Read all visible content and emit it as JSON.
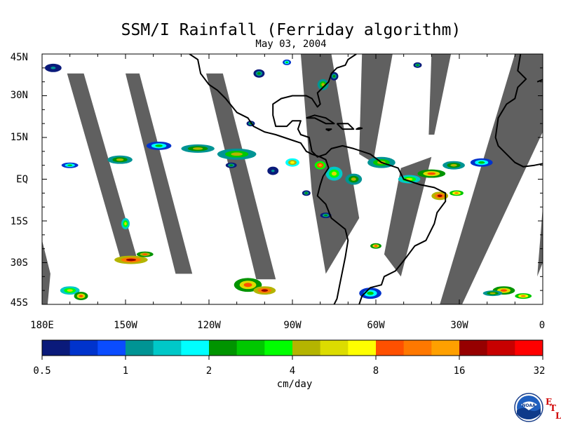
{
  "title": "SSM/I Rainfall (Ferriday algorithm)",
  "date": "May 03, 2004",
  "lat_labels": [
    "45N",
    "30N",
    "15N",
    "EQ",
    "15S",
    "30S",
    "45S"
  ],
  "lon_labels": [
    "180E",
    "150W",
    "120W",
    "90W",
    "60W",
    "30W",
    "0"
  ],
  "colorbar": {
    "tick_labels": [
      "0.5",
      "1",
      "2",
      "4",
      "8",
      "16",
      "32"
    ],
    "units": "cm/day",
    "colors": [
      "#0a1a7a",
      "#0033cc",
      "#0a4cff",
      "#009494",
      "#00c8c8",
      "#00ffff",
      "#009400",
      "#00c800",
      "#00ff00",
      "#b4b400",
      "#dcdc00",
      "#ffff00",
      "#ff5000",
      "#ff7800",
      "#ffa000",
      "#960000",
      "#c80000",
      "#ff0000"
    ]
  },
  "logo": {
    "text": "NOAA",
    "letters": [
      "E",
      "T",
      "L"
    ]
  },
  "chart_data": {
    "type": "map",
    "extent": {
      "lon": [
        -180,
        0
      ],
      "lat": [
        -45,
        45
      ]
    },
    "swath_gaps": [
      [
        [
          -171,
          38
        ],
        [
          -165,
          38
        ],
        [
          -146,
          -28
        ],
        [
          -152,
          -28
        ]
      ],
      [
        [
          -150,
          38
        ],
        [
          -145,
          38
        ],
        [
          -126,
          -34
        ],
        [
          -132,
          -34
        ]
      ],
      [
        [
          -121,
          38
        ],
        [
          -115,
          38
        ],
        [
          -96,
          -36
        ],
        [
          -103,
          -36
        ]
      ],
      [
        [
          -87,
          45
        ],
        [
          -76,
          45
        ],
        [
          -66,
          -14
        ],
        [
          -78,
          -34
        ],
        [
          -83,
          -5
        ]
      ],
      [
        [
          -65,
          45
        ],
        [
          -54,
          45
        ],
        [
          -61,
          6
        ],
        [
          -66,
          9
        ]
      ],
      [
        [
          -40,
          45
        ],
        [
          -33,
          45
        ],
        [
          -39,
          16
        ],
        [
          -41,
          16
        ]
      ],
      [
        [
          -10,
          45
        ],
        [
          0,
          45
        ],
        [
          0,
          17
        ],
        [
          -29,
          -45
        ],
        [
          -37,
          -45
        ]
      ],
      [
        [
          -51,
          4
        ],
        [
          -40,
          8
        ],
        [
          -51,
          -35
        ],
        [
          -57,
          -27
        ]
      ],
      [
        [
          -180,
          -22
        ],
        [
          -177,
          -34
        ],
        [
          -178,
          -45
        ],
        [
          -180,
          -45
        ]
      ],
      [
        [
          0,
          -10
        ],
        [
          0,
          -30
        ],
        [
          -2,
          -35
        ]
      ]
    ],
    "coastlines": [
      [
        [
          -127,
          45
        ],
        [
          -124,
          43
        ],
        [
          -123,
          38
        ],
        [
          -120,
          34
        ],
        [
          -117,
          32
        ],
        [
          -114,
          29
        ],
        [
          -110,
          24
        ],
        [
          -106,
          22
        ],
        [
          -104,
          19
        ],
        [
          -100,
          17
        ],
        [
          -96,
          16
        ],
        [
          -93,
          15
        ],
        [
          -90,
          14
        ],
        [
          -87,
          13
        ],
        [
          -85,
          10
        ],
        [
          -83,
          9
        ],
        [
          -80,
          8
        ],
        [
          -78,
          7
        ],
        [
          -77,
          4
        ],
        [
          -79,
          1
        ],
        [
          -80,
          -2
        ],
        [
          -81,
          -6
        ],
        [
          -78,
          -9
        ],
        [
          -76,
          -14
        ],
        [
          -71,
          -18
        ],
        [
          -70,
          -22
        ],
        [
          -71,
          -28
        ],
        [
          -72,
          -33
        ],
        [
          -73,
          -38
        ],
        [
          -74,
          -43
        ],
        [
          -75,
          -45
        ]
      ],
      [
        [
          -66,
          -45
        ],
        [
          -65,
          -42
        ],
        [
          -62,
          -39
        ],
        [
          -58,
          -38
        ],
        [
          -57,
          -35
        ],
        [
          -53,
          -33
        ],
        [
          -49,
          -28
        ],
        [
          -46,
          -24
        ],
        [
          -42,
          -22
        ],
        [
          -39,
          -16
        ],
        [
          -38,
          -12
        ],
        [
          -35,
          -8
        ],
        [
          -35,
          -5
        ],
        [
          -39,
          -3
        ],
        [
          -44,
          -2
        ],
        [
          -50,
          0
        ],
        [
          -52,
          4
        ],
        [
          -58,
          6
        ],
        [
          -62,
          9
        ],
        [
          -68,
          11
        ],
        [
          -72,
          12
        ],
        [
          -76,
          11
        ],
        [
          -78,
          9
        ],
        [
          -81,
          8
        ],
        [
          -83,
          10
        ],
        [
          -84,
          15
        ],
        [
          -87,
          16
        ],
        [
          -88,
          18
        ],
        [
          -87,
          21
        ],
        [
          -90,
          21
        ],
        [
          -92,
          19
        ],
        [
          -96,
          19
        ],
        [
          -97,
          23
        ],
        [
          -97,
          27
        ],
        [
          -94,
          29
        ],
        [
          -90,
          30
        ],
        [
          -85,
          30
        ],
        [
          -83,
          29
        ],
        [
          -81,
          26
        ],
        [
          -80,
          27
        ],
        [
          -81,
          31
        ],
        [
          -77,
          35
        ],
        [
          -76,
          38
        ],
        [
          -74,
          40
        ],
        [
          -71,
          41
        ],
        [
          -70,
          43
        ],
        [
          -67,
          45
        ]
      ],
      [
        [
          -85,
          22
        ],
        [
          -82,
          23
        ],
        [
          -78,
          22
        ],
        [
          -75,
          20
        ],
        [
          -78,
          20
        ],
        [
          -82,
          22
        ],
        [
          -85,
          22
        ]
      ],
      [
        [
          -74,
          20
        ],
        [
          -70,
          20
        ],
        [
          -68,
          18
        ],
        [
          -72,
          18
        ],
        [
          -74,
          20
        ]
      ],
      [
        [
          -78,
          18
        ],
        [
          -76,
          18
        ],
        [
          -77,
          17.5
        ],
        [
          -78,
          18
        ]
      ],
      [
        [
          -66,
          18.5
        ],
        [
          -65,
          18.3
        ],
        [
          -66,
          18
        ],
        [
          -67,
          18
        ],
        [
          -66,
          18.5
        ]
      ],
      [
        [
          -8,
          45
        ],
        [
          -9,
          39
        ],
        [
          -7,
          37
        ],
        [
          -6,
          36
        ],
        [
          -9,
          33
        ],
        [
          -10,
          29
        ],
        [
          -13,
          27
        ],
        [
          -16,
          22
        ],
        [
          -17,
          15
        ],
        [
          -16,
          12
        ],
        [
          -13,
          9
        ],
        [
          -10,
          6
        ],
        [
          -7,
          4.5
        ],
        [
          -3,
          5
        ],
        [
          0,
          5.6
        ]
      ],
      [
        [
          -2,
          35
        ],
        [
          0,
          35.8
        ]
      ]
    ],
    "rain_cells": [
      [
        -176,
        40,
        6,
        3,
        1
      ],
      [
        -170,
        5,
        6,
        2,
        3
      ],
      [
        -152,
        7,
        9,
        3,
        4
      ],
      [
        -138,
        12,
        9,
        3,
        3
      ],
      [
        -124,
        11,
        12,
        3,
        4
      ],
      [
        -110,
        9,
        14,
        4,
        5
      ],
      [
        -97,
        3,
        4,
        3,
        1
      ],
      [
        -90,
        6,
        5,
        3,
        7
      ],
      [
        -80,
        5,
        4,
        3,
        14
      ],
      [
        -75,
        2,
        6,
        5,
        6
      ],
      [
        -68,
        0,
        6,
        4,
        4
      ],
      [
        -58,
        6,
        10,
        4,
        5
      ],
      [
        -48,
        0,
        8,
        3,
        6
      ],
      [
        -40,
        2,
        10,
        3,
        9
      ],
      [
        -32,
        5,
        8,
        3,
        4
      ],
      [
        -22,
        6,
        8,
        3,
        3
      ],
      [
        -37,
        -6,
        6,
        3,
        18
      ],
      [
        -31,
        -5,
        5,
        2,
        12
      ],
      [
        -78,
        -13,
        4,
        2,
        2
      ],
      [
        -60,
        -24,
        4,
        2,
        9
      ],
      [
        -62,
        -41,
        8,
        4,
        3
      ],
      [
        -106,
        -38,
        10,
        5,
        9
      ],
      [
        -100,
        -40,
        8,
        3,
        18
      ],
      [
        -148,
        -29,
        12,
        3,
        18
      ],
      [
        -143,
        -27,
        6,
        2,
        8
      ],
      [
        -170,
        -40,
        7,
        3,
        6
      ],
      [
        -166,
        -42,
        5,
        3,
        9
      ],
      [
        -14,
        -40,
        8,
        3,
        10
      ],
      [
        -7,
        -42,
        6,
        2,
        12
      ],
      [
        -18,
        -41,
        7,
        2,
        4
      ],
      [
        -79,
        34,
        4,
        4,
        5
      ],
      [
        -75,
        37,
        3,
        3,
        2
      ],
      [
        -102,
        38,
        4,
        3,
        2
      ],
      [
        -92,
        42,
        3,
        2,
        3
      ],
      [
        -150,
        -16,
        3,
        4,
        6
      ],
      [
        -45,
        41,
        3,
        2,
        2
      ],
      [
        -105,
        20,
        3,
        2,
        2
      ],
      [
        -112,
        5,
        4,
        2,
        2
      ],
      [
        -85,
        -5,
        3,
        2,
        2
      ]
    ]
  }
}
